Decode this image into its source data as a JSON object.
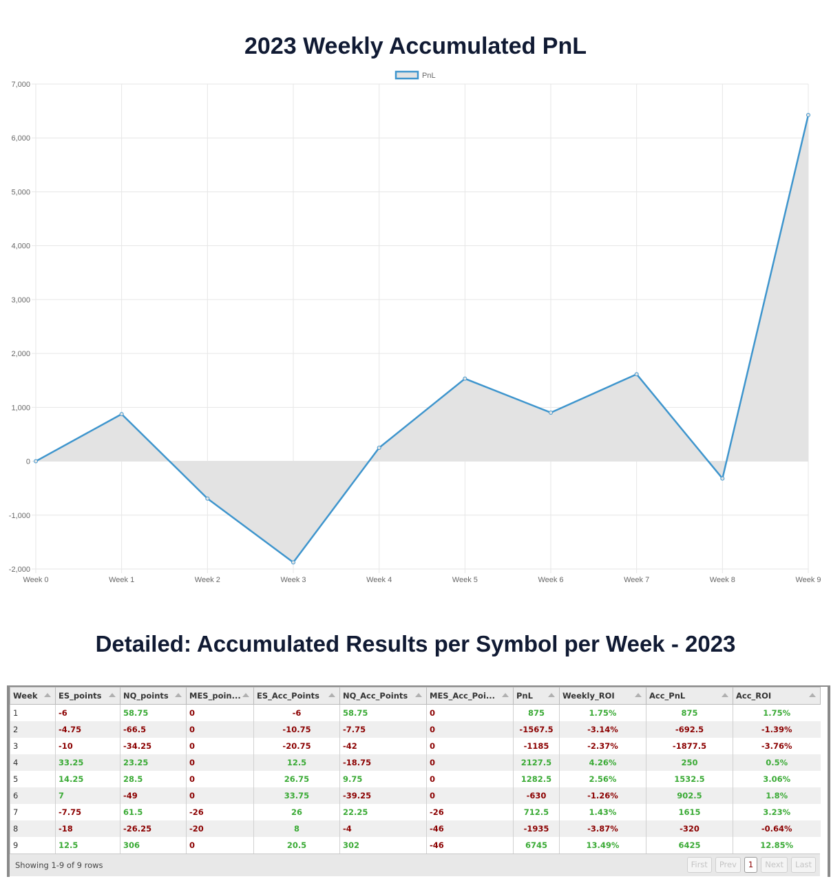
{
  "chart_title": "2023 Weekly Accumulated PnL",
  "chart_data": {
    "type": "area",
    "title": "2023 Weekly Accumulated PnL",
    "categories": [
      "Week 0",
      "Week 1",
      "Week 2",
      "Week 3",
      "Week 4",
      "Week 5",
      "Week 6",
      "Week 7",
      "Week 8",
      "Week 9"
    ],
    "series": [
      {
        "name": "PnL",
        "values": [
          0,
          875,
          -692.5,
          -1877.5,
          250,
          1532.5,
          902.5,
          1615,
          -320,
          6425
        ]
      }
    ],
    "ylim": [
      -2000,
      7000
    ],
    "yticks": [
      -2000,
      -1000,
      0,
      1000,
      2000,
      3000,
      4000,
      5000,
      6000,
      7000
    ],
    "ytick_labels": [
      "-2,000",
      "-1,000",
      "0",
      "1,000",
      "2,000",
      "3,000",
      "4,000",
      "5,000",
      "6,000",
      "7,000"
    ],
    "legend": "top-center",
    "grid": true,
    "colors": {
      "line": "#3e95cd",
      "fill": "#e3e3e3"
    }
  },
  "table_title": "Detailed: Accumulated Results per Symbol per Week - 2023",
  "table": {
    "columns": [
      "Week",
      "ES_points",
      "NQ_points",
      "MES_poin...",
      "ES_Acc_Points",
      "NQ_Acc_Points",
      "MES_Acc_Poi...",
      "PnL",
      "Weekly_ROI",
      "Acc_PnL",
      "Acc_ROI"
    ],
    "rows": [
      [
        "1",
        "-6",
        "58.75",
        "0",
        "-6",
        "58.75",
        "0",
        "875",
        "1.75%",
        "875",
        "1.75%"
      ],
      [
        "2",
        "-4.75",
        "-66.5",
        "0",
        "-10.75",
        "-7.75",
        "0",
        "-1567.5",
        "-3.14%",
        "-692.5",
        "-1.39%"
      ],
      [
        "3",
        "-10",
        "-34.25",
        "0",
        "-20.75",
        "-42",
        "0",
        "-1185",
        "-2.37%",
        "-1877.5",
        "-3.76%"
      ],
      [
        "4",
        "33.25",
        "23.25",
        "0",
        "12.5",
        "-18.75",
        "0",
        "2127.5",
        "4.26%",
        "250",
        "0.5%"
      ],
      [
        "5",
        "14.25",
        "28.5",
        "0",
        "26.75",
        "9.75",
        "0",
        "1282.5",
        "2.56%",
        "1532.5",
        "3.06%"
      ],
      [
        "6",
        "7",
        "-49",
        "0",
        "33.75",
        "-39.25",
        "0",
        "-630",
        "-1.26%",
        "902.5",
        "1.8%"
      ],
      [
        "7",
        "-7.75",
        "61.5",
        "-26",
        "26",
        "22.25",
        "-26",
        "712.5",
        "1.43%",
        "1615",
        "3.23%"
      ],
      [
        "8",
        "-18",
        "-26.25",
        "-20",
        "8",
        "-4",
        "-46",
        "-1935",
        "-3.87%",
        "-320",
        "-0.64%"
      ],
      [
        "9",
        "12.5",
        "306",
        "0",
        "20.5",
        "302",
        "-46",
        "6745",
        "13.49%",
        "6425",
        "12.85%"
      ]
    ],
    "footer_info": "Showing 1-9 of 9 rows",
    "pager": {
      "first": "First",
      "prev": "Prev",
      "page": "1",
      "next": "Next",
      "last": "Last"
    },
    "colors": {
      "positive": "#3aaa35",
      "negative": "#8b0000"
    }
  }
}
